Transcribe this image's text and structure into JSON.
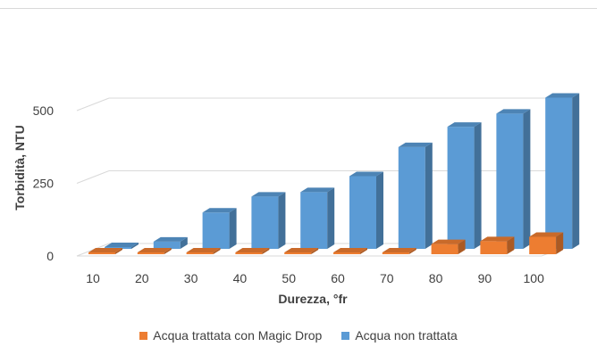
{
  "chart_data": {
    "type": "bar",
    "subtype": "3d-clustered-column",
    "title": "",
    "xlabel": "Durezza, °fr",
    "ylabel": "Torbidità, NTU",
    "categories": [
      "10",
      "20",
      "30",
      "40",
      "50",
      "60",
      "70",
      "80",
      "90",
      "100"
    ],
    "series": [
      {
        "name": "Acqua trattata con Magic Drop",
        "color": "#ED7D31",
        "values": [
          0,
          0,
          0,
          0,
          0,
          0,
          5,
          35,
          45,
          60
        ]
      },
      {
        "name": "Acqua non trattata",
        "color": "#5B9BD5",
        "values": [
          5,
          25,
          125,
          180,
          195,
          250,
          350,
          420,
          465,
          520
        ]
      }
    ],
    "ylim": [
      0,
      600
    ],
    "yticks": [
      "0",
      "250",
      "500"
    ],
    "grid": true,
    "legend_position": "bottom"
  }
}
